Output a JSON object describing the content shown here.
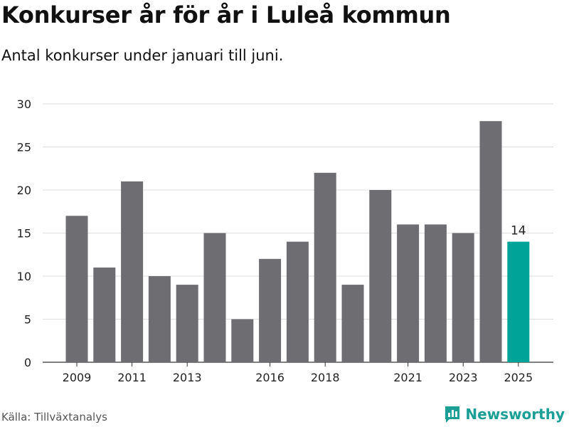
{
  "header": {
    "title": "Konkurser år för år i Luleå kommun",
    "subtitle": "Antal konkurser under januari till juni."
  },
  "footer": {
    "source": "Källa: Tillväxtanalys",
    "brand": "Newsworthy",
    "brand_icon": "bar-chart-logo-icon"
  },
  "colors": {
    "bar": "#6d6d72",
    "highlight": "#00a398",
    "grid": "#dddddd",
    "brand": "#1a9e95"
  },
  "chart_data": {
    "type": "bar",
    "categories": [
      "2009",
      "2010",
      "2011",
      "2012",
      "2013",
      "2014",
      "2015",
      "2016",
      "2017",
      "2018",
      "2019",
      "2020",
      "2021",
      "2022",
      "2023",
      "2024",
      "2025"
    ],
    "values": [
      17,
      11,
      21,
      10,
      9,
      15,
      5,
      12,
      14,
      22,
      9,
      20,
      16,
      16,
      15,
      28,
      14
    ],
    "x_tick_labels": [
      "2009",
      "2011",
      "2013",
      "2016",
      "2018",
      "2021",
      "2023",
      "2025"
    ],
    "y_ticks": [
      0,
      5,
      10,
      15,
      20,
      25,
      30
    ],
    "ylim": [
      0,
      30
    ],
    "highlight_category": "2025",
    "data_labels": [
      {
        "category": "2025",
        "text": "14"
      }
    ],
    "grid": true,
    "legend": false,
    "xlabel": "",
    "ylabel": ""
  }
}
